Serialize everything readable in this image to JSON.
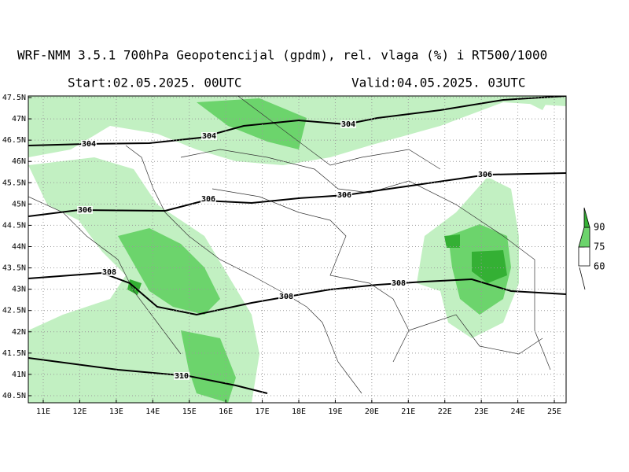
{
  "header": {
    "title": "WRF-NMM 3.5.1    700hPa Geopotencijal (gpdm), rel. vlaga (%) i RT500/1000",
    "start": "Start:02.05.2025.  00UTC",
    "valid": "Valid:04.05.2025.  03UTC"
  },
  "map": {
    "lat_labels": [
      "47.5N",
      "47N",
      "46.5N",
      "46N",
      "45.5N",
      "45N",
      "44.5N",
      "44N",
      "43.5N",
      "43N",
      "42.5N",
      "42N",
      "41.5N",
      "41N",
      "40.5N"
    ],
    "lon_labels": [
      "11E",
      "12E",
      "13E",
      "14E",
      "15E",
      "16E",
      "17E",
      "18E",
      "19E",
      "20E",
      "21E",
      "22E",
      "23E",
      "24E",
      "25E"
    ],
    "contour_labels": [
      "304",
      "304",
      "304",
      "306",
      "306",
      "306",
      "306",
      "308",
      "308",
      "308",
      "310"
    ]
  },
  "legend": {
    "labels": [
      "90",
      "75",
      "60"
    ]
  }
}
